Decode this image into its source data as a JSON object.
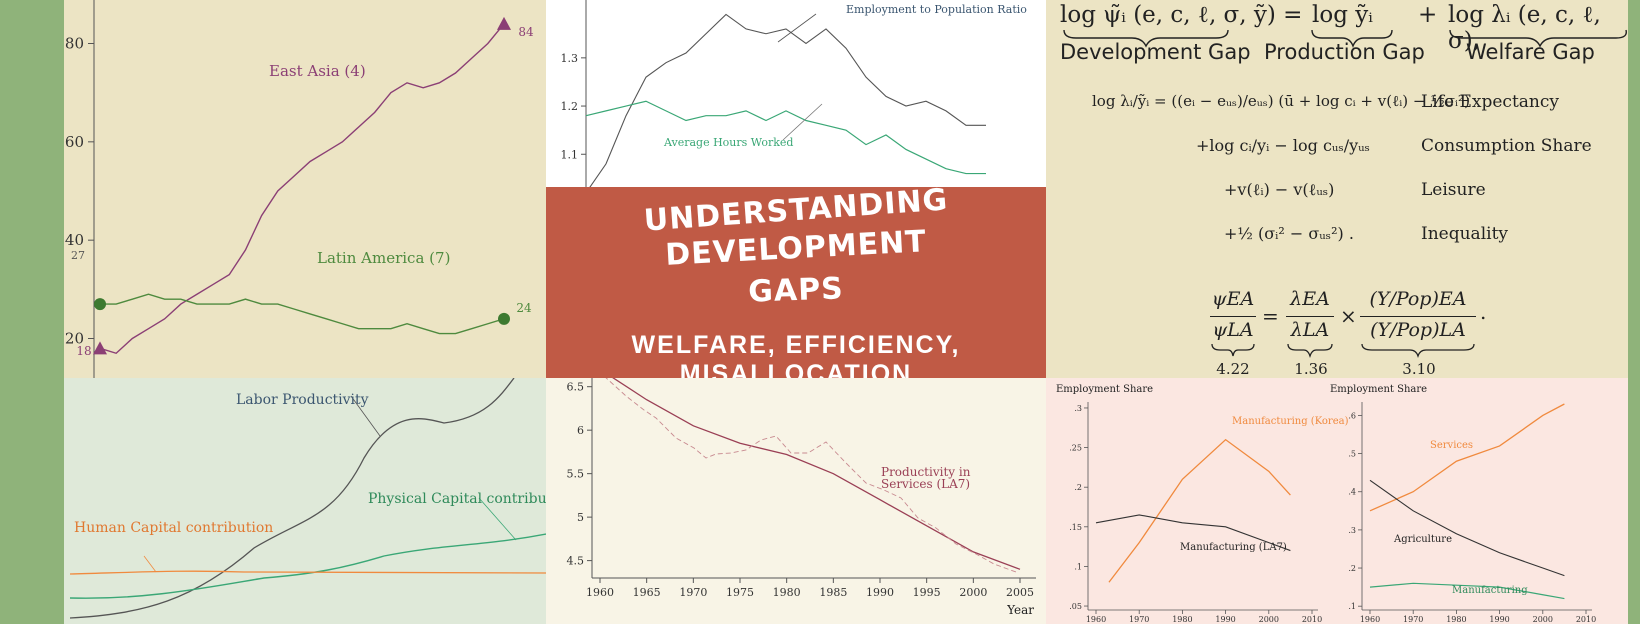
{
  "colors": {
    "background": "#8fb37a",
    "panel_tl": "#ece4c4",
    "panel_tm": "#ffffff",
    "panel_tr": "#ece4c4",
    "panel_bl": "#dfe9d9",
    "panel_bm": "#f8f4e6",
    "panel_br": "#fbe7e1",
    "title_banner": "#c05a45",
    "purple": "#8b3f75",
    "green": "#4e8a3e",
    "teal": "#3aa776",
    "orange": "#f08a3e",
    "dark": "#333333"
  },
  "title": {
    "line1": "UNDERSTANDING",
    "line2": "DEVELOPMENT",
    "line3": "GAPS",
    "subtitle": "WELFARE, EFFICIENCY, MISALLOCATION"
  },
  "equations": {
    "main_lhs": "log ψ̃ᵢ (e, c, ℓ, σ, ỹ) =",
    "main_mid": "log ỹᵢ",
    "main_plus": "+",
    "main_rhs": "log λᵢ (e, c, ℓ, σ),",
    "brace1": "Development Gap",
    "brace2": "Production Gap",
    "brace3": "Welfare Gap",
    "row1": "log λᵢ/ỹᵢ = ((eᵢ − eᵤₛ)/eᵤₛ) (ū + log cᵢ + v(ℓᵢ) − ½σᵢ²)",
    "row1_label": "Life Expectancy",
    "row2": "+log cᵢ/yᵢ − log cᵤₛ/yᵤₛ",
    "row2_label": "Consumption Share",
    "row3": "+v(ℓᵢ) − v(ℓᵤₛ)",
    "row3_label": "Leisure",
    "row4": "+½ (σᵢ² − σᵤₛ²) .",
    "row4_label": "Inequality",
    "ratio_lhs_num": "ψEA",
    "ratio_lhs_den": "ψLA",
    "ratio_eq": "=",
    "ratio_mid_num": "λEA",
    "ratio_mid_den": "λLA",
    "ratio_times": "×",
    "ratio_rhs_num": "(Y/Pop)EA",
    "ratio_rhs_den": "(Y/Pop)LA",
    "ratio_end": ".",
    "val1": "4.22",
    "val2": "1.36",
    "val3": "3.10"
  },
  "chart_data": [
    {
      "type": "line",
      "ylim": [
        14,
        86
      ],
      "yticks": [
        20,
        40,
        60,
        80
      ],
      "series": [
        {
          "name": "East Asia (4)",
          "color": "#8b3f75",
          "x": [
            0,
            4,
            8,
            12,
            16,
            20,
            24,
            28,
            32,
            36,
            40,
            44,
            48,
            52,
            56,
            60,
            64,
            68,
            72,
            76,
            80,
            84,
            88,
            92,
            96,
            100
          ],
          "values": [
            18,
            17,
            20,
            22,
            24,
            27,
            29,
            31,
            33,
            38,
            45,
            50,
            53,
            56,
            58,
            60,
            63,
            66,
            70,
            72,
            71,
            72,
            74,
            77,
            80,
            84
          ]
        },
        {
          "name": "Latin America (7)",
          "color": "#4e8a3e",
          "x": [
            0,
            4,
            8,
            12,
            16,
            20,
            24,
            28,
            32,
            36,
            40,
            44,
            48,
            52,
            56,
            60,
            64,
            68,
            72,
            76,
            80,
            84,
            88,
            92,
            96,
            100
          ],
          "values": [
            27,
            27,
            28,
            29,
            28,
            28,
            27,
            27,
            27,
            28,
            27,
            27,
            26,
            25,
            24,
            23,
            22,
            22,
            22,
            23,
            22,
            21,
            21,
            22,
            23,
            24
          ]
        }
      ],
      "annotations": [
        "84",
        "27",
        "24",
        "18"
      ]
    },
    {
      "type": "line",
      "yticks": [
        "1.3",
        "1.2",
        "1.1"
      ],
      "ylim": [
        1.03,
        1.42
      ],
      "series": [
        {
          "name": "Employment to Population Ratio",
          "color": "#555555",
          "x": [
            0,
            5,
            10,
            15,
            20,
            25,
            30,
            35,
            40,
            45,
            50,
            55,
            60,
            65,
            70,
            75,
            80,
            85,
            90,
            95,
            100
          ],
          "values": [
            1.02,
            1.08,
            1.18,
            1.26,
            1.29,
            1.31,
            1.35,
            1.39,
            1.36,
            1.35,
            1.36,
            1.33,
            1.36,
            1.32,
            1.26,
            1.22,
            1.2,
            1.21,
            1.19,
            1.16,
            1.16
          ]
        },
        {
          "name": "Average Hours Worked",
          "color": "#3aa776",
          "x": [
            0,
            5,
            10,
            15,
            20,
            25,
            30,
            35,
            40,
            45,
            50,
            55,
            60,
            65,
            70,
            75,
            80,
            85,
            90,
            95,
            100
          ],
          "values": [
            1.18,
            1.19,
            1.2,
            1.21,
            1.19,
            1.17,
            1.18,
            1.18,
            1.19,
            1.17,
            1.19,
            1.17,
            1.16,
            1.15,
            1.12,
            1.14,
            1.11,
            1.09,
            1.07,
            1.06,
            1.06
          ]
        }
      ]
    },
    {
      "type": "line",
      "series": [
        {
          "name": "Labor Productivity",
          "color": "#555555"
        },
        {
          "name": "Physical Capital contribution",
          "color": "#3aa776"
        },
        {
          "name": "Human Capital contribution",
          "color": "#f08a3e"
        }
      ]
    },
    {
      "type": "line",
      "xlabel": "Year",
      "xticks": [
        "1960",
        "1965",
        "1970",
        "1975",
        "1980",
        "1985",
        "1990",
        "1995",
        "2000",
        "2005"
      ],
      "yticks": [
        "6.5",
        "6",
        "5.5",
        "5",
        "4.5"
      ],
      "ylim": [
        4.3,
        6.6
      ],
      "series": [
        {
          "name": "Productivity in Services (LA7)",
          "color": "#9a3f55",
          "x": [
            1960,
            1965,
            1970,
            1975,
            1980,
            1985,
            1990,
            1995,
            2000,
            2005
          ],
          "values": [
            6.7,
            6.35,
            6.05,
            5.85,
            5.72,
            5.5,
            5.2,
            4.9,
            4.6,
            4.4
          ]
        }
      ]
    },
    {
      "type": "line",
      "ylabel": "Employment Share",
      "xticks": [
        "1960",
        "1970",
        "1980",
        "1990",
        "2000",
        "2010"
      ],
      "yticks": [
        ".3",
        ".25",
        ".2",
        ".15",
        ".1",
        ".05"
      ],
      "series": [
        {
          "name": "Manufacturing (Korea)",
          "color": "#f08a3e",
          "x": [
            1963,
            1970,
            1980,
            1990,
            2000,
            2005
          ],
          "values": [
            0.08,
            0.13,
            0.21,
            0.26,
            0.22,
            0.19
          ]
        },
        {
          "name": "Manufacturing (LA7)",
          "color": "#333333",
          "x": [
            1960,
            1970,
            1980,
            1990,
            2000,
            2005
          ],
          "values": [
            0.155,
            0.165,
            0.155,
            0.15,
            0.13,
            0.12
          ]
        }
      ]
    },
    {
      "type": "line",
      "ylabel": "Employment Share",
      "xticks": [
        "1960",
        "1970",
        "1980",
        "1990",
        "2000",
        "2010"
      ],
      "yticks": [
        ".6",
        ".5",
        ".4",
        ".3",
        ".2",
        ".1"
      ],
      "series": [
        {
          "name": "Services",
          "color": "#f08a3e",
          "x": [
            1960,
            1970,
            1980,
            1990,
            2000,
            2005
          ],
          "values": [
            0.35,
            0.4,
            0.48,
            0.52,
            0.6,
            0.63
          ]
        },
        {
          "name": "Agriculture",
          "color": "#333333",
          "x": [
            1960,
            1970,
            1980,
            1990,
            2000,
            2005
          ],
          "values": [
            0.43,
            0.35,
            0.29,
            0.24,
            0.2,
            0.18
          ]
        },
        {
          "name": "Manufacturing",
          "color": "#3aa776",
          "x": [
            1960,
            1970,
            1980,
            1990,
            2000,
            2005
          ],
          "values": [
            0.15,
            0.16,
            0.155,
            0.15,
            0.13,
            0.12
          ]
        }
      ]
    }
  ]
}
